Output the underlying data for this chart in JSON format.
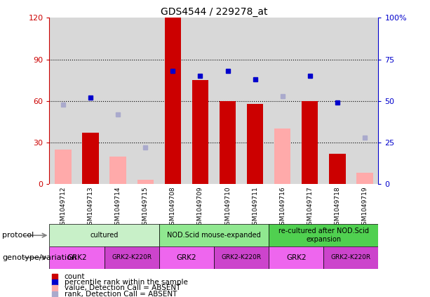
{
  "title": "GDS4544 / 229278_at",
  "samples": [
    "GSM1049712",
    "GSM1049713",
    "GSM1049714",
    "GSM1049715",
    "GSM1049708",
    "GSM1049709",
    "GSM1049710",
    "GSM1049711",
    "GSM1049716",
    "GSM1049717",
    "GSM1049718",
    "GSM1049719"
  ],
  "count_values": [
    null,
    37,
    null,
    null,
    120,
    75,
    60,
    58,
    null,
    60,
    22,
    null
  ],
  "count_absent_values": [
    25,
    null,
    20,
    3,
    null,
    null,
    null,
    null,
    40,
    null,
    null,
    8
  ],
  "percentile_values": [
    null,
    52,
    null,
    null,
    68,
    65,
    68,
    63,
    null,
    65,
    49,
    null
  ],
  "percentile_absent_values": [
    48,
    null,
    42,
    22,
    null,
    null,
    null,
    null,
    53,
    null,
    null,
    28
  ],
  "ylim_left": [
    0,
    120
  ],
  "ylim_right": [
    0,
    100
  ],
  "yticks_left": [
    0,
    30,
    60,
    90,
    120
  ],
  "yticks_right": [
    0,
    25,
    50,
    75,
    100
  ],
  "ytick_labels_left": [
    "0",
    "30",
    "60",
    "90",
    "120"
  ],
  "ytick_labels_right": [
    "0",
    "25",
    "50",
    "75",
    "100%"
  ],
  "protocol_groups": [
    {
      "label": "cultured",
      "start": 0,
      "end": 3,
      "color": "#c8f0c8"
    },
    {
      "label": "NOD.Scid mouse-expanded",
      "start": 4,
      "end": 7,
      "color": "#90e890"
    },
    {
      "label": "re-cultured after NOD.Scid\nexpansion",
      "start": 8,
      "end": 11,
      "color": "#50d050"
    }
  ],
  "genotype_groups": [
    {
      "label": "GRK2",
      "start": 0,
      "end": 1,
      "color": "#ee66ee"
    },
    {
      "label": "GRK2-K220R",
      "start": 2,
      "end": 3,
      "color": "#cc44cc"
    },
    {
      "label": "GRK2",
      "start": 4,
      "end": 5,
      "color": "#ee66ee"
    },
    {
      "label": "GRK2-K220R",
      "start": 6,
      "end": 7,
      "color": "#cc44cc"
    },
    {
      "label": "GRK2",
      "start": 8,
      "end": 9,
      "color": "#ee66ee"
    },
    {
      "label": "GRK2-K220R",
      "start": 10,
      "end": 11,
      "color": "#cc44cc"
    }
  ],
  "bar_color_present": "#cc0000",
  "bar_color_absent": "#ffaaaa",
  "dot_color_present": "#0000cc",
  "dot_color_absent": "#aaaacc",
  "background_color": "#d8d8d8",
  "left_axis_color": "#cc0000",
  "right_axis_color": "#0000cc",
  "tick_bg_color": "#c0c0c0"
}
